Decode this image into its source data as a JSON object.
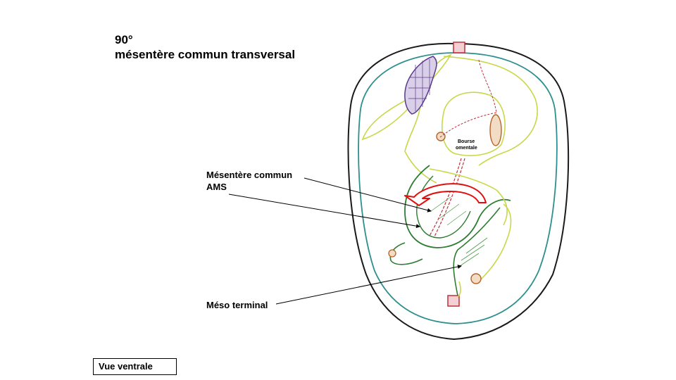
{
  "title": {
    "line1": "90°",
    "line2": "mésentère commun transversal"
  },
  "labels": {
    "mesentere_line1": "Mésentère commun",
    "mesentere_line2": "AMS",
    "meso_terminal": "Méso terminal",
    "bourse_line1": "Bourse",
    "bourse_line2": "omentale"
  },
  "view": "Vue ventrale",
  "colors": {
    "outline": "#1a1a1a",
    "peritoneum": "#2f8f8f",
    "mesentery": "#c8d84a",
    "intestine": "#2e7d32",
    "rotation_arrow": "#e01010",
    "vessel": "#c0303a",
    "spleen": "#5a3a8a"
  }
}
